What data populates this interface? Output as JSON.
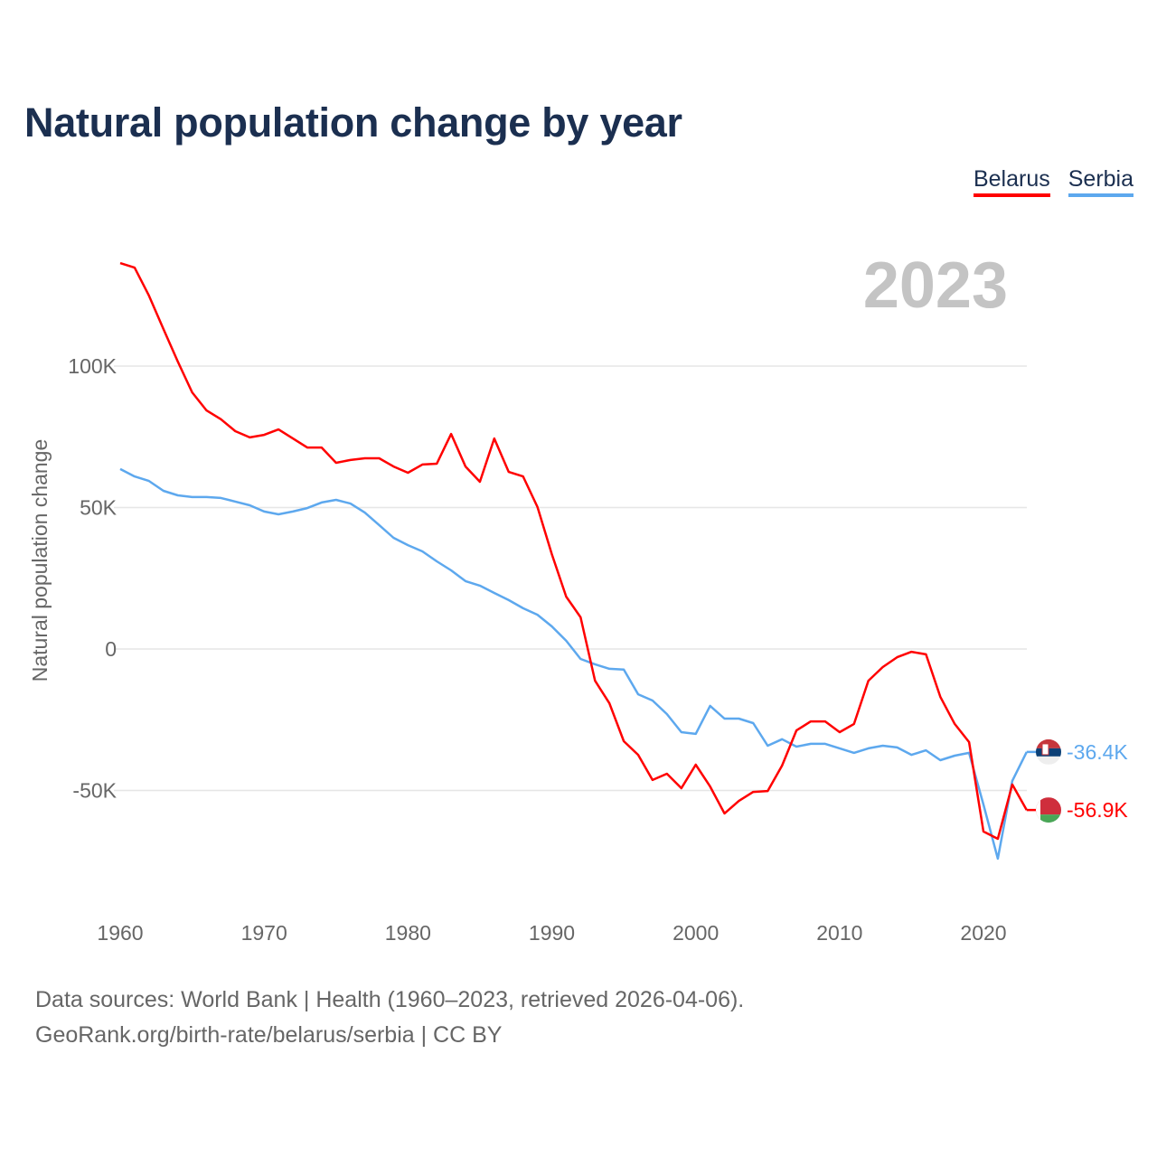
{
  "title": "Natural population change by year",
  "footer": {
    "line1": "Data sources: World Bank | Health (1960–2023, retrieved 2026-04-06).",
    "line2": "GeoRank.org/birth-rate/belarus/serbia | CC BY"
  },
  "chart_data": {
    "type": "line",
    "title": "Natural population change by year",
    "ylabel": "Natural population change",
    "xlabel": "",
    "year_label": "2023",
    "xlim": [
      1960,
      2023
    ],
    "ylim": [
      -90000,
      140000
    ],
    "grid": true,
    "legend_position": "top-right",
    "x_ticks": [
      1960,
      1970,
      1980,
      1990,
      2000,
      2010,
      2020
    ],
    "y_ticks": [
      {
        "value": 100000,
        "label": "100K"
      },
      {
        "value": 50000,
        "label": "50K"
      },
      {
        "value": 0,
        "label": "0"
      },
      {
        "value": -50000,
        "label": "-50K"
      }
    ],
    "x": [
      1960,
      1961,
      1962,
      1963,
      1964,
      1965,
      1966,
      1967,
      1968,
      1969,
      1970,
      1971,
      1972,
      1973,
      1974,
      1975,
      1976,
      1977,
      1978,
      1979,
      1980,
      1981,
      1982,
      1983,
      1984,
      1985,
      1986,
      1987,
      1988,
      1989,
      1990,
      1991,
      1992,
      1993,
      1994,
      1995,
      1996,
      1997,
      1998,
      1999,
      2000,
      2001,
      2002,
      2003,
      2004,
      2005,
      2006,
      2007,
      2008,
      2009,
      2010,
      2011,
      2012,
      2013,
      2014,
      2015,
      2016,
      2017,
      2018,
      2019,
      2020,
      2021,
      2022,
      2023
    ],
    "series": [
      {
        "name": "Belarus",
        "color": "#ff0000",
        "end_label": "-56.9K",
        "flag": "belarus-flag",
        "values": [
          136400,
          134800,
          124900,
          113100,
          101600,
          90700,
          84300,
          81200,
          77000,
          74800,
          75700,
          77600,
          74400,
          71200,
          71200,
          65800,
          66800,
          67400,
          67400,
          64500,
          62300,
          65200,
          65500,
          76000,
          64500,
          59100,
          74400,
          62600,
          61000,
          50200,
          33500,
          18500,
          11200,
          -11200,
          -19200,
          -32600,
          -37400,
          -46300,
          -44100,
          -49200,
          -40900,
          -48600,
          -58100,
          -53700,
          -50500,
          -50200,
          -41200,
          -28800,
          -25600,
          -25600,
          -29400,
          -26500,
          -11200,
          -6400,
          -2900,
          -1000,
          -1900,
          -16900,
          -26500,
          -32900,
          -64500,
          -67100,
          -47900,
          -56900
        ]
      },
      {
        "name": "Serbia",
        "color": "#5da8ee",
        "end_label": "-36.4K",
        "flag": "serbia-flag",
        "values": [
          63600,
          61000,
          59400,
          55900,
          54300,
          53700,
          53700,
          53400,
          52100,
          50800,
          48600,
          47600,
          48600,
          49800,
          51800,
          52700,
          51400,
          48200,
          43800,
          39300,
          36700,
          34500,
          31000,
          27800,
          24000,
          22400,
          19800,
          17300,
          14400,
          12100,
          8000,
          2900,
          -3500,
          -5400,
          -7000,
          -7300,
          -16000,
          -18200,
          -23000,
          -29400,
          -30000,
          -20100,
          -24600,
          -24600,
          -26200,
          -34200,
          -31900,
          -34500,
          -33500,
          -33500,
          -35100,
          -36700,
          -35100,
          -34200,
          -34800,
          -37400,
          -35800,
          -39300,
          -37700,
          -36700,
          -55000,
          -74100,
          -46600,
          -36400
        ]
      }
    ]
  }
}
